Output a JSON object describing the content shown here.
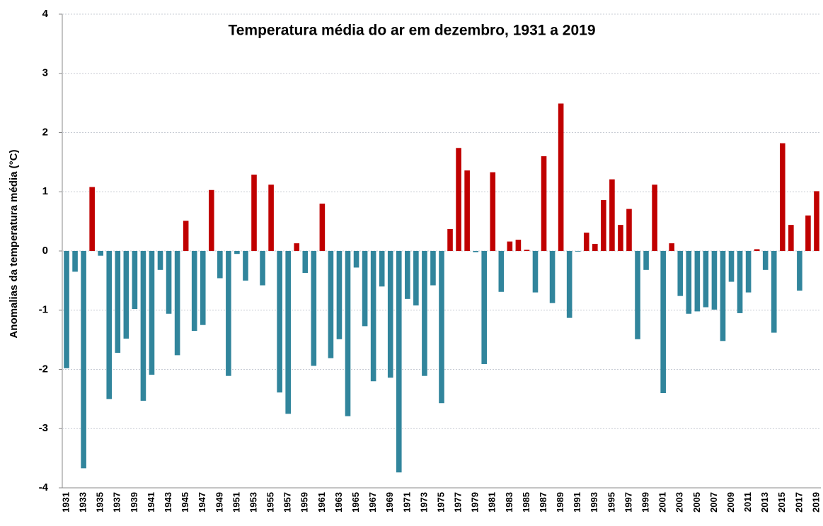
{
  "chart_data": {
    "type": "bar",
    "title": "Temperatura média do ar em dezembro, 1931 a 2019",
    "y_label": "Anomalias da temperatura média (°C)",
    "categories": [
      "1931",
      null,
      "1933",
      null,
      "1935",
      null,
      "1937",
      null,
      "1939",
      null,
      "1941",
      null,
      "1943",
      null,
      "1945",
      null,
      "1947",
      null,
      "1949",
      null,
      "1951",
      null,
      "1953",
      null,
      "1955",
      null,
      "1957",
      null,
      "1959",
      null,
      "1961",
      null,
      "1963",
      null,
      "1965",
      null,
      "1967",
      null,
      "1969",
      null,
      "1971",
      null,
      "1973",
      null,
      "1975",
      null,
      "1977",
      null,
      "1979",
      null,
      "1981",
      null,
      "1983",
      null,
      "1985",
      null,
      "1987",
      null,
      "1989",
      null,
      "1991",
      null,
      "1993",
      null,
      "1995",
      null,
      "1997",
      null,
      "1999",
      null,
      "2001",
      null,
      "2003",
      null,
      "2005",
      null,
      "2007",
      null,
      "2009",
      null,
      "2011",
      null,
      "2013",
      null,
      "2015",
      null,
      "2017",
      null,
      "2019"
    ],
    "values": [
      -1.98,
      -0.35,
      -3.67,
      1.08,
      -0.08,
      -2.5,
      -1.72,
      -1.48,
      -0.98,
      -2.53,
      -2.09,
      -0.32,
      -1.06,
      -1.76,
      0.51,
      -1.35,
      -1.25,
      1.03,
      -0.46,
      -2.11,
      -0.05,
      -0.5,
      1.29,
      -0.58,
      1.12,
      -2.39,
      -2.75,
      0.13,
      -0.37,
      -1.94,
      0.8,
      -1.81,
      -1.49,
      -2.79,
      -0.28,
      -1.27,
      -2.2,
      -0.6,
      -2.14,
      -3.74,
      -0.81,
      -0.92,
      -2.11,
      -0.58,
      -2.57,
      0.37,
      1.74,
      1.36,
      -0.02,
      -1.91,
      1.33,
      -0.69,
      0.16,
      0.19,
      0.02,
      -0.7,
      1.6,
      -0.88,
      2.49,
      -1.13,
      -0.01,
      0.31,
      0.12,
      0.86,
      1.21,
      0.44,
      0.71,
      -1.49,
      -0.32,
      1.12,
      -2.4,
      0.13,
      -0.76,
      -1.06,
      -1.02,
      -0.95,
      -0.99,
      -1.52,
      -0.52,
      -1.05,
      -0.7,
      0.03,
      -0.32,
      -1.38,
      1.82,
      0.44,
      -0.67,
      0.6,
      1.01
    ],
    "positive_color": "#c00000",
    "negative_color": "#31859c",
    "ylim": [
      -4,
      4
    ],
    "yticks": [
      -4,
      -3,
      -2,
      -1,
      0,
      1,
      2,
      3,
      4
    ],
    "grid": true
  }
}
